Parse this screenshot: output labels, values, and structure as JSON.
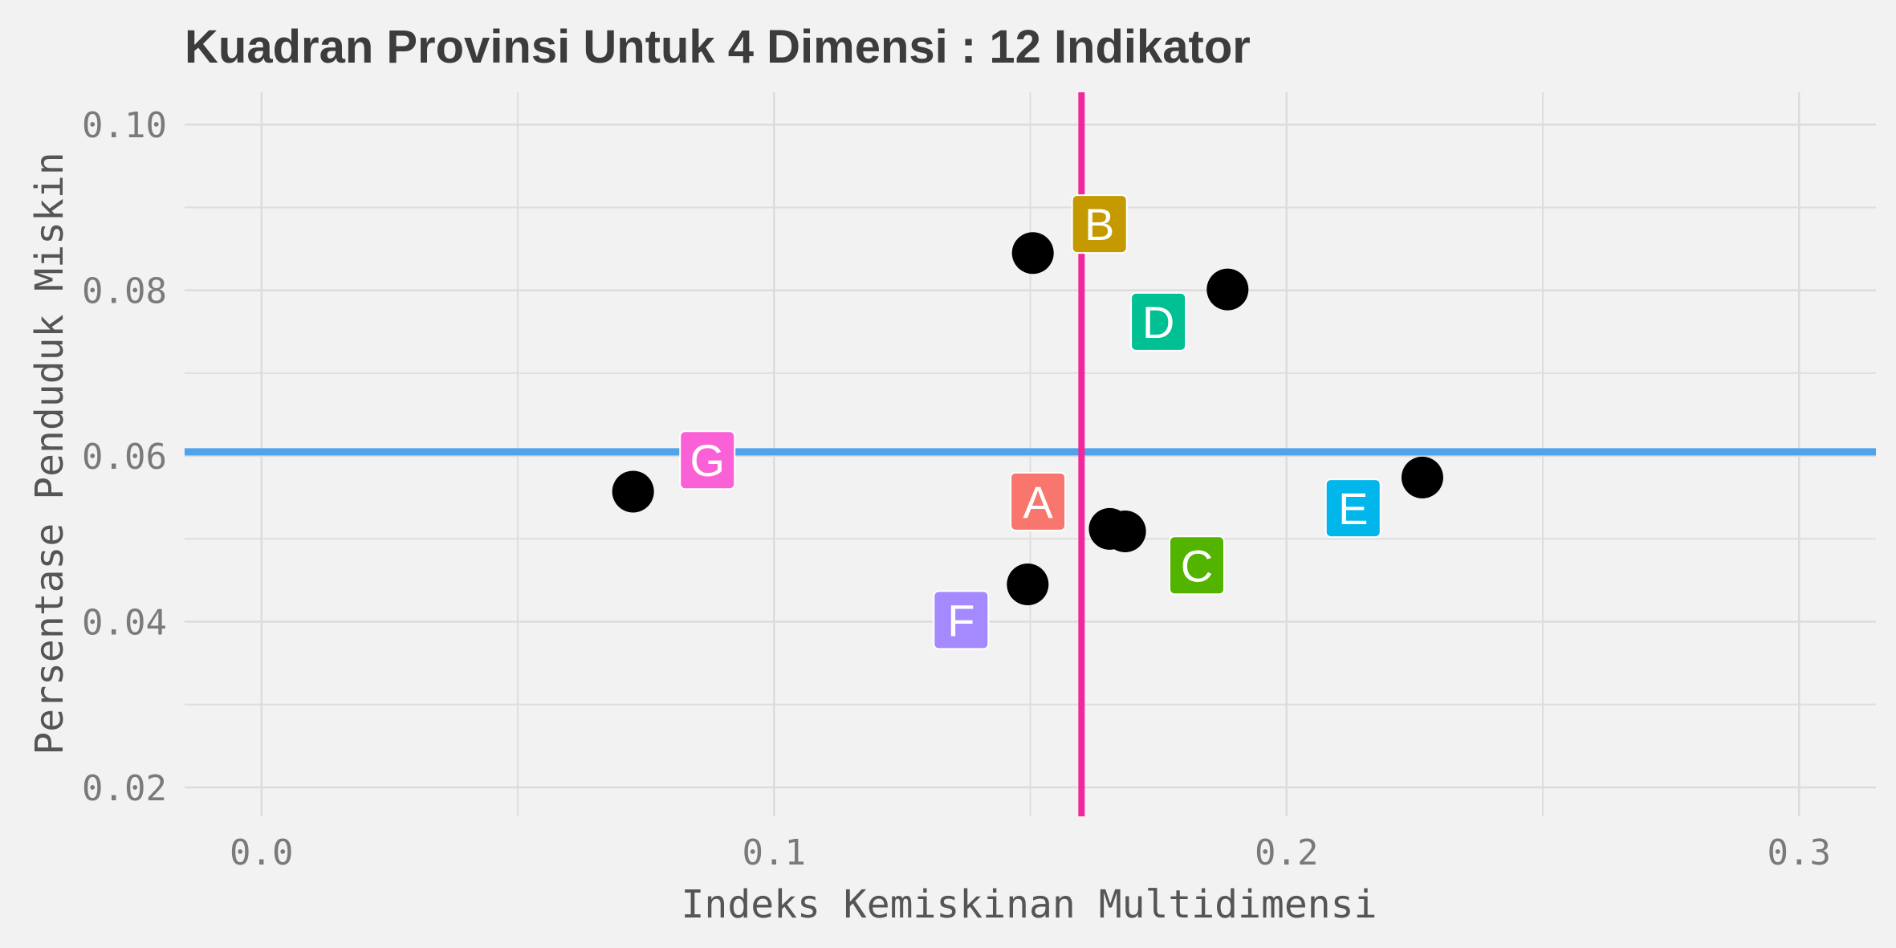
{
  "chart_data": {
    "type": "scatter",
    "title": "Kuadran Provinsi Untuk 4 Dimensi : 12 Indikator",
    "xlabel": "Indeks Kemiskinan Multidimensi",
    "ylabel": "Persentase Penduduk Miskin",
    "xlim": [
      -0.015,
      0.315
    ],
    "ylim": [
      0.0165,
      0.1039
    ],
    "x_ticks": [
      0.0,
      0.1,
      0.2,
      0.3
    ],
    "x_tick_labels": [
      "0.0",
      "0.1",
      "0.2",
      "0.3"
    ],
    "y_ticks": [
      0.02,
      0.04,
      0.06,
      0.08,
      0.1
    ],
    "y_tick_labels": [
      "0.02",
      "0.04",
      "0.06",
      "0.08",
      "0.10"
    ],
    "grid": true,
    "points": [
      {
        "x": 0.0725,
        "y": 0.0557
      },
      {
        "x": 0.1505,
        "y": 0.0845
      },
      {
        "x": 0.1885,
        "y": 0.0801
      },
      {
        "x": 0.1655,
        "y": 0.0512
      },
      {
        "x": 0.1685,
        "y": 0.0509
      },
      {
        "x": 0.1495,
        "y": 0.0445
      },
      {
        "x": 0.2265,
        "y": 0.0574
      }
    ],
    "mean_x": 0.16,
    "mean_y": 0.0605,
    "mean_x_color": "#f0299b",
    "mean_y_color": "#4ea3ea",
    "quadrant_labels": [
      {
        "text": "A",
        "x": 0.1515,
        "y": 0.0545,
        "color": "#f8766d"
      },
      {
        "text": "B",
        "x": 0.1635,
        "y": 0.088,
        "color": "#c49a00"
      },
      {
        "text": "C",
        "x": 0.1825,
        "y": 0.0468,
        "color": "#53b400"
      },
      {
        "text": "D",
        "x": 0.175,
        "y": 0.0762,
        "color": "#00c094"
      },
      {
        "text": "E",
        "x": 0.213,
        "y": 0.0537,
        "color": "#00b6eb"
      },
      {
        "text": "F",
        "x": 0.1365,
        "y": 0.0402,
        "color": "#a58aff"
      },
      {
        "text": "G",
        "x": 0.087,
        "y": 0.0595,
        "color": "#fb61d7"
      }
    ]
  }
}
